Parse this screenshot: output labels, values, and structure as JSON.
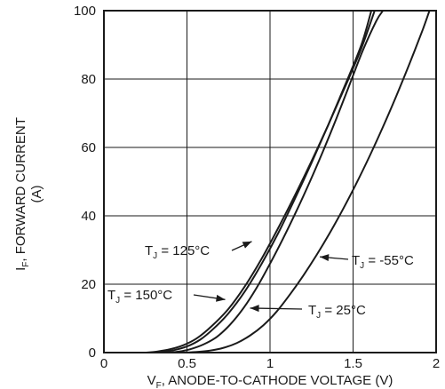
{
  "chart_data": {
    "type": "line",
    "xlabel": {
      "main": "V",
      "sub": "F",
      "rest": ", ANODE-TO-CATHODE VOLTAGE (V)"
    },
    "ylabel": {
      "main": "I",
      "sub": "F",
      "rest": ", FORWARD CURRENT",
      "unit": "(A)"
    },
    "xlim": [
      0,
      2
    ],
    "ylim": [
      0,
      100
    ],
    "x_ticks": [
      0,
      0.5,
      1,
      1.5,
      2
    ],
    "x_tick_labels": [
      "0",
      "0.5",
      "1",
      "1.5",
      "2"
    ],
    "y_ticks": [
      0,
      20,
      40,
      60,
      80,
      100
    ],
    "y_tick_labels": [
      "0",
      "20",
      "40",
      "60",
      "80",
      "100"
    ],
    "grid": true,
    "series": [
      {
        "name": "TJ = 125°C",
        "label_main": "T",
        "label_sub": "J",
        "label_rest": " = 125°C",
        "x": [
          0.27,
          0.35,
          0.42,
          0.5,
          0.58,
          0.66,
          0.75,
          0.85,
          0.95,
          1.05,
          1.15,
          1.25,
          1.35,
          1.45,
          1.55,
          1.61
        ],
        "y": [
          0,
          0.2,
          0.7,
          1.8,
          3.8,
          7,
          11.5,
          18,
          26,
          35,
          45,
          55.5,
          66.5,
          78,
          90,
          100
        ]
      },
      {
        "name": "TJ = 150°C",
        "label_main": "T",
        "label_sub": "J",
        "label_rest": " = 150°C",
        "x": [
          0.25,
          0.32,
          0.4,
          0.48,
          0.56,
          0.65,
          0.75,
          0.85,
          0.95,
          1.05,
          1.15,
          1.25,
          1.35,
          1.45,
          1.55,
          1.63
        ],
        "y": [
          0,
          0.3,
          1,
          2.2,
          4.2,
          7.8,
          12.8,
          19.5,
          27.5,
          36.5,
          46,
          56,
          66.5,
          77.5,
          89,
          100
        ]
      },
      {
        "name": "TJ = 25°C",
        "label_main": "T",
        "label_sub": "J",
        "label_rest": " = 25°C",
        "x": [
          0.38,
          0.45,
          0.52,
          0.6,
          0.68,
          0.76,
          0.84,
          0.92,
          1.0,
          1.08,
          1.16,
          1.24,
          1.32,
          1.4,
          1.48,
          1.56,
          1.64,
          1.68
        ],
        "y": [
          0,
          0.3,
          1,
          2.4,
          4.6,
          8.2,
          13,
          19,
          26,
          33.5,
          41.5,
          50,
          59,
          68.5,
          78.5,
          88.5,
          97,
          100
        ]
      },
      {
        "name": "TJ = -55°C",
        "label_main": "T",
        "label_sub": "J",
        "label_rest": " = -55°C",
        "x": [
          0.48,
          0.56,
          0.64,
          0.72,
          0.8,
          0.88,
          0.96,
          1.04,
          1.12,
          1.2,
          1.28,
          1.36,
          1.44,
          1.52,
          1.6,
          1.68,
          1.76,
          1.84,
          1.92,
          1.96
        ],
        "y": [
          0,
          0.2,
          0.6,
          1.4,
          2.8,
          5,
          8,
          12,
          17,
          22.5,
          28.5,
          35,
          42,
          49.5,
          57.5,
          66,
          75,
          84.5,
          94.5,
          100
        ]
      }
    ],
    "annotations": [
      {
        "series": "TJ = 125°C",
        "main": "T",
        "sub": "J",
        "rest": " = 125°C",
        "point_at": [
          0.89,
          32.5
        ]
      },
      {
        "series": "TJ = 150°C",
        "main": "T",
        "sub": "J",
        "rest": " = 150°C",
        "point_at": [
          0.73,
          15.5
        ]
      },
      {
        "series": "TJ = 25°C",
        "main": "T",
        "sub": "J",
        "rest": " = 25°C",
        "point_at": [
          0.88,
          13
        ]
      },
      {
        "series": "TJ = -55°C",
        "main": "T",
        "sub": "J",
        "rest": " = -55°C",
        "point_at": [
          1.3,
          28
        ]
      }
    ]
  }
}
